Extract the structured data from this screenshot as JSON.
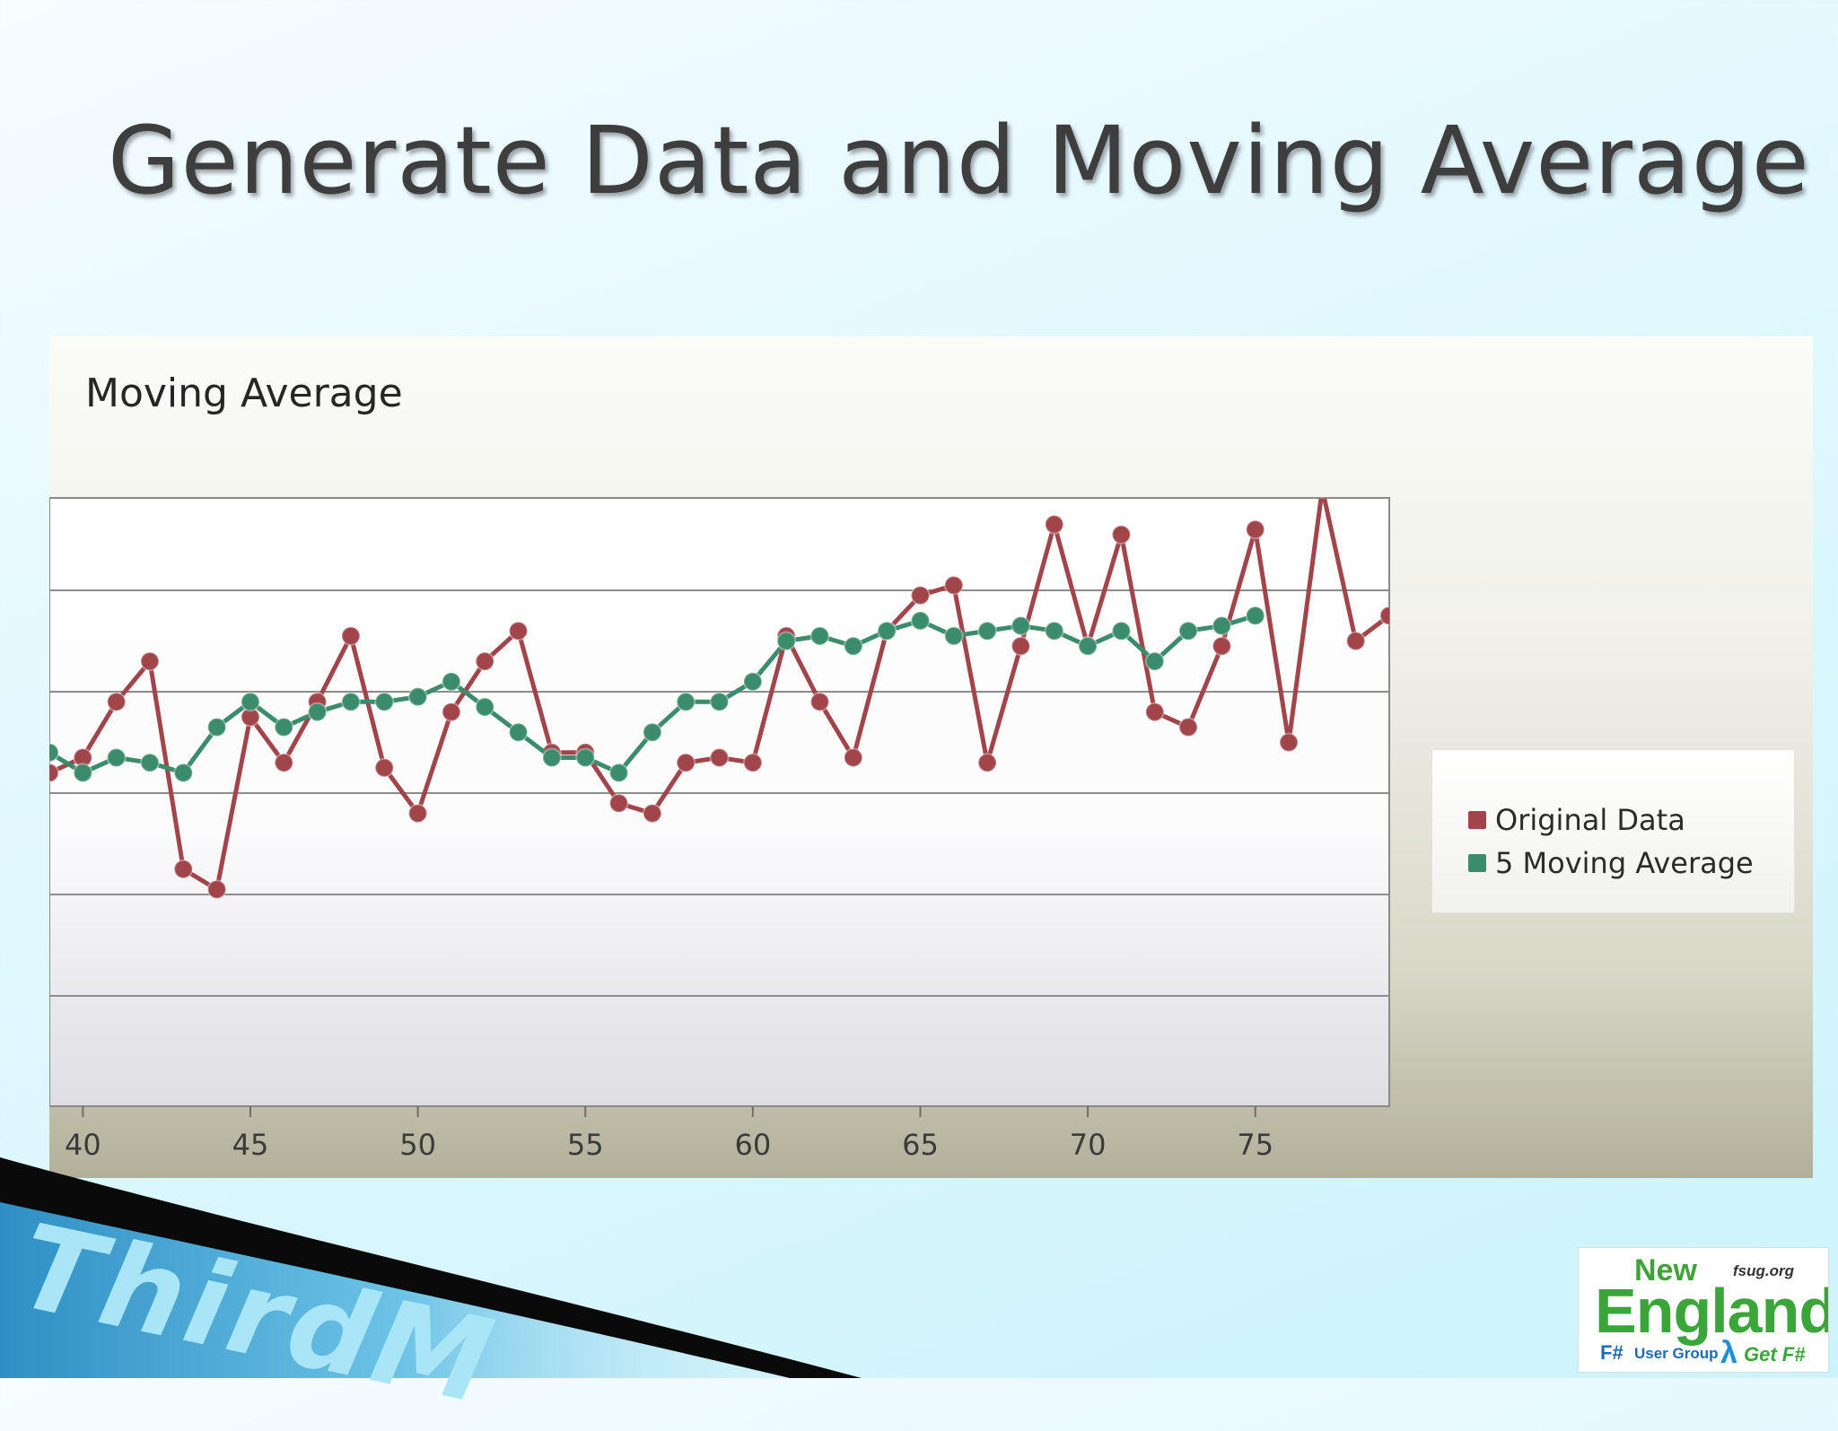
{
  "slide": {
    "title": "Generate Data and Moving Average"
  },
  "colors": {
    "original": "#a2454b",
    "moving_avg": "#3b8c6c",
    "title": "#3e3e3e"
  },
  "chart_data": {
    "type": "line",
    "title": "Moving Average",
    "xlabel": "",
    "ylabel": "",
    "xlim": [
      39,
      79
    ],
    "ylim": [
      0,
      6
    ],
    "xticks": [
      "40",
      "45",
      "50",
      "55",
      "60",
      "65",
      "70",
      "75"
    ],
    "legend_position": "right",
    "grid": true,
    "series": [
      {
        "name": "Original Data",
        "color": "#a2454b",
        "x": [
          39,
          40,
          41,
          42,
          43,
          44,
          45,
          46,
          47,
          48,
          49,
          50,
          51,
          52,
          53,
          54,
          55,
          56,
          57,
          58,
          59,
          60,
          61,
          62,
          63,
          64,
          65,
          66,
          67,
          68,
          69,
          70,
          71,
          72,
          73,
          74,
          75,
          76,
          77,
          78,
          79
        ],
        "values": [
          3.2,
          3.35,
          3.9,
          4.3,
          2.25,
          2.05,
          3.75,
          3.3,
          3.9,
          4.55,
          3.25,
          2.8,
          3.8,
          4.3,
          4.6,
          3.4,
          3.4,
          2.9,
          2.8,
          3.3,
          3.35,
          3.3,
          4.55,
          3.9,
          3.35,
          4.6,
          4.95,
          5.05,
          3.3,
          4.45,
          5.65,
          4.45,
          5.55,
          3.8,
          3.65,
          4.45,
          5.6,
          3.5,
          6.0,
          4.5,
          4.75
        ]
      },
      {
        "name": "5 Moving Average",
        "color": "#3b8c6c",
        "x": [
          39,
          40,
          41,
          42,
          43,
          44,
          45,
          46,
          47,
          48,
          49,
          50,
          51,
          52,
          53,
          54,
          55,
          56,
          57,
          58,
          59,
          60,
          61,
          62,
          63,
          64,
          65,
          66,
          67,
          68,
          69,
          70,
          71,
          72,
          73,
          74,
          75
        ],
        "values": [
          3.4,
          3.2,
          3.35,
          3.3,
          3.2,
          3.65,
          3.9,
          3.65,
          3.8,
          3.9,
          3.9,
          3.95,
          4.1,
          3.85,
          3.6,
          3.35,
          3.35,
          3.2,
          3.6,
          3.9,
          3.9,
          4.1,
          4.5,
          4.55,
          4.45,
          4.6,
          4.7,
          4.55,
          4.6,
          4.65,
          4.6,
          4.45,
          4.6,
          4.3,
          4.6,
          4.65,
          4.75
        ]
      }
    ]
  }
}
